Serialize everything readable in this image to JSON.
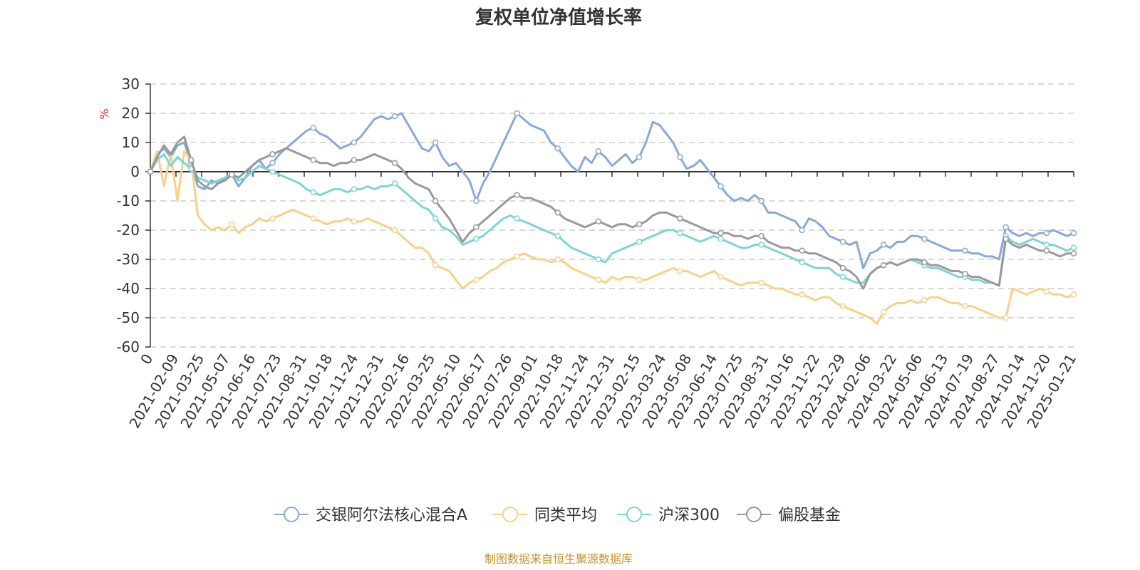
{
  "chart_data": {
    "type": "line",
    "title": "复权单位净值增长率",
    "ylabel": "%",
    "ylim": [
      -60,
      30
    ],
    "yticks": [
      30,
      20,
      10,
      0,
      -10,
      -20,
      -30,
      -40,
      -50,
      -60
    ],
    "grid": true,
    "legend_position": "bottom",
    "x_tick_labels": [
      "0",
      "2021-02-09",
      "2021-03-25",
      "2021-05-07",
      "2021-06-16",
      "2021-07-23",
      "2021-08-31",
      "2021-10-18",
      "2021-11-24",
      "2021-12-31",
      "2022-02-16",
      "2022-03-25",
      "2022-05-10",
      "2022-06-17",
      "2022-07-26",
      "2022-09-01",
      "2022-10-18",
      "2022-11-24",
      "2022-12-31",
      "2023-02-15",
      "2023-03-24",
      "2023-05-08",
      "2023-06-14",
      "2023-07-25",
      "2023-08-31",
      "2023-10-16",
      "2023-11-22",
      "2023-12-29",
      "2024-02-06",
      "2024-03-22",
      "2024-05-06",
      "2024-06-13",
      "2024-07-19",
      "2024-08-27",
      "2024-10-14",
      "2024-11-20",
      "2025-01-21"
    ],
    "series": [
      {
        "name": "交银阿尔法核心混合A",
        "color": "#8aa8d8",
        "values": [
          0,
          6,
          8,
          5,
          9,
          10,
          3,
          -5,
          -6,
          -3,
          -4,
          -2,
          -1,
          -5,
          -2,
          2,
          4,
          1,
          3,
          6,
          8,
          10,
          12,
          14,
          15,
          13,
          12,
          10,
          8,
          9,
          10,
          12,
          15,
          18,
          19,
          18,
          19,
          20,
          16,
          12,
          8,
          7,
          10,
          5,
          2,
          3,
          0,
          -3,
          -10,
          -4,
          0,
          5,
          10,
          15,
          20,
          18,
          16,
          15,
          14,
          10,
          8,
          5,
          2,
          0,
          5,
          3,
          7,
          5,
          2,
          4,
          6,
          3,
          5,
          10,
          17,
          16,
          13,
          10,
          5,
          1,
          2,
          4,
          1,
          -2,
          -5,
          -8,
          -10,
          -9,
          -10,
          -8,
          -10,
          -14,
          -14,
          -15,
          -16,
          -17,
          -20,
          -16,
          -17,
          -19,
          -22,
          -23,
          -24,
          -25,
          -24,
          -33,
          -28,
          -27,
          -25,
          -26,
          -24,
          -24,
          -22,
          -22,
          -23,
          -24,
          -25,
          -26,
          -27,
          -27,
          -27,
          -28,
          -28,
          -29,
          -29,
          -30,
          -19,
          -21,
          -22,
          -21,
          -22,
          -21,
          -21,
          -20,
          -21,
          -22,
          -21
        ]
      },
      {
        "name": "同类平均",
        "color": "#f7d08a",
        "values": [
          0,
          7,
          -5,
          6,
          -10,
          7,
          4,
          -15,
          -18,
          -20,
          -19,
          -20,
          -18,
          -21,
          -19,
          -18,
          -16,
          -17,
          -16,
          -15,
          -14,
          -13,
          -14,
          -15,
          -16,
          -17,
          -18,
          -17,
          -17,
          -16,
          -17,
          -17,
          -16,
          -17,
          -18,
          -19,
          -20,
          -22,
          -24,
          -26,
          -26,
          -28,
          -32,
          -33,
          -34,
          -37,
          -40,
          -38,
          -37,
          -36,
          -34,
          -33,
          -31,
          -30,
          -29,
          -28,
          -29,
          -30,
          -30,
          -31,
          -30,
          -31,
          -33,
          -34,
          -35,
          -36,
          -37,
          -38,
          -36,
          -37,
          -36,
          -36,
          -37,
          -37,
          -36,
          -35,
          -34,
          -33,
          -34,
          -34,
          -35,
          -36,
          -35,
          -34,
          -36,
          -37,
          -38,
          -39,
          -38,
          -38,
          -38,
          -39,
          -40,
          -40,
          -41,
          -42,
          -42,
          -43,
          -44,
          -43,
          -43,
          -45,
          -46,
          -47,
          -48,
          -49,
          -50,
          -52,
          -48,
          -46,
          -45,
          -45,
          -44,
          -45,
          -44,
          -43,
          -43,
          -44,
          -45,
          -45,
          -46,
          -46,
          -47,
          -48,
          -49,
          -50,
          -50,
          -40,
          -41,
          -42,
          -41,
          -40,
          -41,
          -42,
          -42,
          -43,
          -42
        ]
      },
      {
        "name": "沪深300",
        "color": "#7fd3d3",
        "values": [
          0,
          4,
          6,
          2,
          5,
          3,
          1,
          -2,
          -3,
          -4,
          -3,
          -2,
          -1,
          -3,
          -2,
          0,
          2,
          1,
          0,
          -1,
          -2,
          -3,
          -4,
          -6,
          -7,
          -8,
          -7,
          -6,
          -6,
          -7,
          -6,
          -6,
          -5,
          -6,
          -5,
          -5,
          -4,
          -6,
          -8,
          -10,
          -12,
          -13,
          -16,
          -19,
          -20,
          -22,
          -25,
          -24,
          -23,
          -22,
          -20,
          -18,
          -16,
          -15,
          -16,
          -17,
          -18,
          -19,
          -20,
          -21,
          -22,
          -24,
          -26,
          -27,
          -28,
          -29,
          -30,
          -31,
          -28,
          -27,
          -26,
          -25,
          -24,
          -23,
          -22,
          -21,
          -20,
          -20,
          -21,
          -22,
          -23,
          -24,
          -23,
          -22,
          -23,
          -24,
          -25,
          -26,
          -26,
          -25,
          -25,
          -26,
          -27,
          -28,
          -29,
          -30,
          -31,
          -32,
          -33,
          -33,
          -33,
          -35,
          -36,
          -37,
          -38,
          -38,
          -35,
          -33,
          -32,
          -31,
          -32,
          -31,
          -30,
          -31,
          -32,
          -33,
          -33,
          -34,
          -35,
          -36,
          -36,
          -37,
          -37,
          -38,
          -38,
          -39,
          -22,
          -24,
          -25,
          -24,
          -23,
          -24,
          -25,
          -25,
          -26,
          -27,
          -26
        ]
      },
      {
        "name": "偏股基金",
        "color": "#999999",
        "values": [
          0,
          5,
          9,
          6,
          10,
          12,
          4,
          -3,
          -5,
          -6,
          -4,
          -3,
          -1,
          -2,
          0,
          2,
          4,
          5,
          6,
          7,
          8,
          7,
          6,
          5,
          4,
          3,
          3,
          2,
          3,
          3,
          4,
          4,
          5,
          6,
          5,
          4,
          3,
          1,
          -2,
          -4,
          -5,
          -6,
          -10,
          -13,
          -16,
          -20,
          -24,
          -21,
          -19,
          -17,
          -15,
          -13,
          -11,
          -9,
          -8,
          -9,
          -9,
          -10,
          -11,
          -12,
          -14,
          -16,
          -17,
          -18,
          -19,
          -18,
          -17,
          -18,
          -19,
          -18,
          -18,
          -19,
          -18,
          -17,
          -15,
          -14,
          -14,
          -15,
          -16,
          -17,
          -18,
          -19,
          -20,
          -21,
          -21,
          -21,
          -22,
          -22,
          -23,
          -22,
          -22,
          -24,
          -25,
          -26,
          -26,
          -27,
          -27,
          -28,
          -28,
          -29,
          -30,
          -31,
          -33,
          -34,
          -36,
          -40,
          -35,
          -33,
          -32,
          -31,
          -32,
          -31,
          -30,
          -30,
          -31,
          -32,
          -32,
          -33,
          -34,
          -34,
          -35,
          -36,
          -36,
          -37,
          -38,
          -39,
          -23,
          -25,
          -26,
          -25,
          -26,
          -27,
          -27,
          -28,
          -29,
          -28,
          -28
        ]
      }
    ]
  },
  "source_note": "制图数据来自恒生聚源数据库"
}
